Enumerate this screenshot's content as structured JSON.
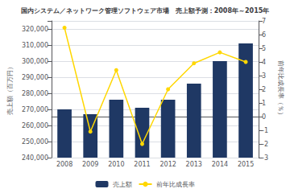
{
  "chart_data": {
    "type": "bar",
    "title": "国内システム／ネットワーク管理ソフトウェア市場　売上額予測：2008年～2015年",
    "categories": [
      "2008",
      "2009",
      "2010",
      "2011",
      "2012",
      "2013",
      "2014",
      "2015"
    ],
    "series": [
      {
        "name": "売上額",
        "type": "bar",
        "color": "#1F3864",
        "values": [
          270000,
          267000,
          276000,
          271000,
          276000,
          286000,
          300000,
          311000
        ]
      },
      {
        "name": "前年比成長率",
        "type": "line",
        "axis": "y2",
        "color": "#FFD700",
        "marker": "circle",
        "values": [
          6.5,
          -1.1,
          3.4,
          -2.0,
          2.0,
          3.9,
          4.7,
          4.0
        ]
      }
    ],
    "ylabel": "売上額（百万円）",
    "y2label": "前年比成長率（％）",
    "ylim": [
      240000,
      325000
    ],
    "yticks": [
      {
        "value": 240000,
        "label": "240,000"
      },
      {
        "value": 250000,
        "label": "250,000"
      },
      {
        "value": 260000,
        "label": "260,000"
      },
      {
        "value": 270000,
        "label": "270,000"
      },
      {
        "value": 280000,
        "label": "280,000"
      },
      {
        "value": 290000,
        "label": "290,000"
      },
      {
        "value": 300000,
        "label": "300,000"
      },
      {
        "value": 310000,
        "label": "310,000"
      },
      {
        "value": 320000,
        "label": "320,000"
      }
    ],
    "y2lim": [
      -3,
      7
    ],
    "y2ticks": [
      -3,
      -2,
      -1,
      0,
      1,
      2,
      3,
      4,
      5,
      6,
      7
    ],
    "grid": true,
    "legend": "bottom"
  }
}
